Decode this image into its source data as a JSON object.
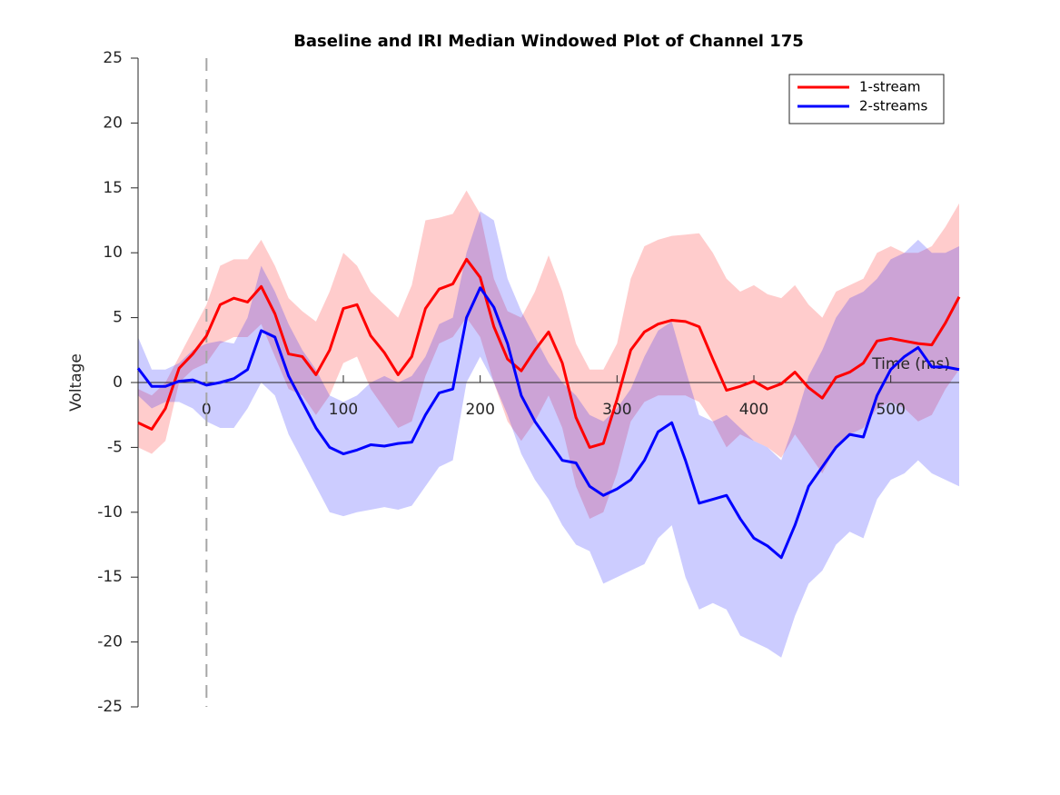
{
  "chart_data": {
    "type": "line",
    "title": "Baseline and IRI Median Windowed Plot of Channel 175",
    "xlabel": "Time (ms)",
    "ylabel": "Voltage",
    "x": [
      -50,
      -40,
      -30,
      -20,
      -10,
      0,
      10,
      20,
      30,
      40,
      50,
      60,
      70,
      80,
      90,
      100,
      110,
      120,
      130,
      140,
      150,
      160,
      170,
      180,
      190,
      200,
      210,
      220,
      230,
      240,
      250,
      260,
      270,
      280,
      290,
      300,
      310,
      320,
      330,
      340,
      350,
      360,
      370,
      380,
      390,
      400,
      410,
      420,
      430,
      440,
      450,
      460,
      470,
      480,
      490,
      500,
      510,
      520,
      530,
      540,
      550
    ],
    "series": [
      {
        "name": "1-stream",
        "color": "#ff0000",
        "values": [
          -3.1,
          -3.6,
          -2,
          1.1,
          2.2,
          3.6,
          6.0,
          6.5,
          6.2,
          7.4,
          5.3,
          2.2,
          2.0,
          0.6,
          2.5,
          5.7,
          6.0,
          3.6,
          2.3,
          0.6,
          2.0,
          5.7,
          7.2,
          7.6,
          9.5,
          8.1,
          4.3,
          1.8,
          0.9,
          2.5,
          3.9,
          1.5,
          -2.7,
          -5.0,
          -4.7,
          -1.3,
          2.5,
          3.9,
          4.5,
          4.8,
          4.7,
          4.3,
          1.8,
          -0.6,
          -0.3,
          0.1,
          -0.5,
          -0.1,
          0.8,
          -0.4,
          -1.2,
          0.4,
          0.8,
          1.5,
          3.2,
          3.4,
          3.2,
          3.0,
          2.9,
          4.6,
          6.6
        ],
        "upper": [
          -0.5,
          -1,
          0,
          2,
          4,
          6,
          9,
          9.5,
          9.5,
          11,
          9,
          6.5,
          5.5,
          4.7,
          7,
          10,
          9,
          7,
          6,
          5,
          7.5,
          12.5,
          12.7,
          13,
          14.8,
          13,
          8,
          5.5,
          5,
          7,
          9.8,
          7,
          3,
          1,
          1,
          3,
          8,
          10.5,
          11,
          11.3,
          11.4,
          11.5,
          10,
          8,
          7,
          7.5,
          6.8,
          6.5,
          7.5,
          6,
          5,
          7,
          7.5,
          8,
          10,
          10.5,
          10,
          10,
          10.5,
          12,
          13.8
        ],
        "lower": [
          -5,
          -5.5,
          -4.5,
          0,
          1,
          1.5,
          3,
          3.5,
          3.5,
          4.5,
          2,
          -0.5,
          -1,
          -2.5,
          -1,
          1.5,
          2,
          -0.5,
          -2,
          -3.5,
          -3,
          0.5,
          3,
          3.5,
          5,
          3.5,
          0,
          -3,
          -4.5,
          -3,
          -1,
          -3.5,
          -8,
          -10.5,
          -10,
          -7,
          -3,
          -1.5,
          -1,
          -1,
          -1,
          -1.5,
          -3,
          -5,
          -4,
          -4.5,
          -5,
          -5.8,
          -4,
          -5.5,
          -7,
          -5,
          -4,
          -3.5,
          -2,
          -1.5,
          -2,
          -3,
          -2.5,
          -0.5,
          1
        ]
      },
      {
        "name": "2-streams",
        "color": "#0000ff",
        "values": [
          1.1,
          -0.3,
          -0.3,
          0.1,
          0.2,
          -0.2,
          0,
          0.3,
          1,
          4,
          3.5,
          0.5,
          -1.5,
          -3.5,
          -5,
          -5.5,
          -5.2,
          -4.8,
          -4.9,
          -4.7,
          -4.6,
          -2.5,
          -0.8,
          -0.5,
          5,
          7.3,
          5.8,
          3,
          -1,
          -3,
          -4.5,
          -6,
          -6.2,
          -8,
          -8.7,
          -8.2,
          -7.5,
          -6,
          -3.8,
          -3.1,
          -6,
          -9.3,
          -9,
          -8.7,
          -10.5,
          -12,
          -12.6,
          -13.5,
          -11,
          -8,
          -6.5,
          -5,
          -4,
          -4.2,
          -1,
          1,
          2,
          2.7,
          1.2,
          1.2,
          1
        ],
        "upper": [
          3.5,
          1,
          1,
          1.5,
          2.5,
          3,
          3.2,
          3,
          5,
          9,
          7,
          4.5,
          2.5,
          1,
          -1,
          -1.5,
          -1,
          0,
          0.5,
          0,
          0.5,
          2,
          4.5,
          5,
          10,
          13.2,
          12.5,
          8,
          5.5,
          3.5,
          1.5,
          0,
          -1,
          -2.5,
          -3,
          -2,
          -0.5,
          2,
          4,
          4.7,
          1,
          -2.5,
          -3,
          -2.5,
          -3.5,
          -4.5,
          -5,
          -6,
          -3,
          0.5,
          2.5,
          5,
          6.5,
          7,
          8,
          9.5,
          10,
          11,
          10,
          10,
          10.5
        ],
        "lower": [
          -1,
          -2,
          -1.5,
          -1.5,
          -2,
          -3,
          -3.5,
          -3.5,
          -2,
          0,
          -1,
          -4,
          -6,
          -8,
          -10,
          -10.3,
          -10,
          -9.8,
          -9.6,
          -9.8,
          -9.5,
          -8,
          -6.5,
          -6,
          0,
          2,
          0,
          -2.5,
          -5.5,
          -7.5,
          -9,
          -11,
          -12.5,
          -13,
          -15.5,
          -15,
          -14.5,
          -14,
          -12,
          -11,
          -15,
          -17.5,
          -17,
          -17.5,
          -19.5,
          -20,
          -20.5,
          -21.2,
          -18,
          -15.5,
          -14.5,
          -12.5,
          -11.5,
          -12,
          -9,
          -7.5,
          -7,
          -6,
          -7,
          -7.5,
          -8
        ]
      }
    ],
    "xlim": [
      -50,
      550
    ],
    "ylim": [
      -25,
      25
    ],
    "xticks": [
      0,
      100,
      200,
      300,
      400,
      500
    ],
    "yticks": [
      -25,
      -20,
      -15,
      -10,
      -5,
      0,
      5,
      10,
      15,
      20,
      25
    ],
    "vline": 0,
    "band_opacity": 0.2,
    "legend": "upper right"
  }
}
